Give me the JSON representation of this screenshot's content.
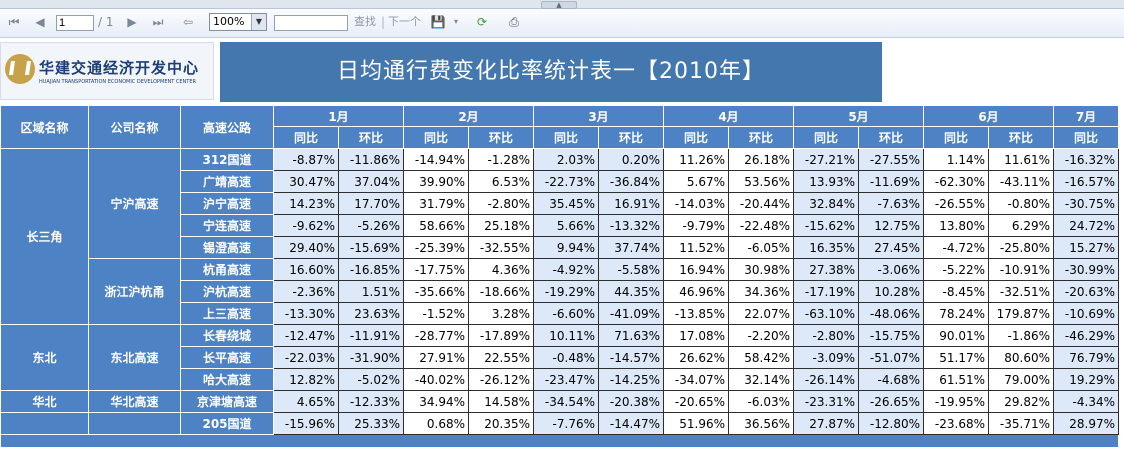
{
  "toolbar": {
    "first_icon": "first-page-icon",
    "prev_icon": "previous-page-icon",
    "page_value": "1",
    "page_total": "/ 1",
    "next_icon": "next-page-icon",
    "last_icon": "last-page-icon",
    "back_icon": "back-icon",
    "zoom_value": "100%",
    "search_value": "",
    "find_label": "查找",
    "separator": "|",
    "next_label": "下一个",
    "export_icon": "export-icon",
    "refresh_icon": "refresh-icon",
    "print_icon": "print-icon"
  },
  "header": {
    "logo_cn": "华建交通经济开发中心",
    "logo_en": "HUAJIAN TRANSPORTATION ECONOMIC DEVELOPMENT CENTER",
    "title": "日均通行费变化比率统计表一【2010年】"
  },
  "table": {
    "col_region": "区域名称",
    "col_company": "公司名称",
    "col_highway": "高速公路",
    "months": [
      "1月",
      "2月",
      "3月",
      "4月",
      "5月",
      "6月",
      "7月"
    ],
    "sub_yoy": "同比",
    "sub_mom": "环比",
    "regions": [
      {
        "name": "长三角",
        "companies": [
          {
            "name": "宁沪高速",
            "highways": [
              {
                "name": "312国道",
                "values": [
                  "-8.87%",
                  "-11.86%",
                  "-14.94%",
                  "-1.28%",
                  "2.03%",
                  "0.20%",
                  "11.26%",
                  "26.18%",
                  "-27.21%",
                  "-27.55%",
                  "1.14%",
                  "11.61%",
                  "-16.32%"
                ]
              },
              {
                "name": "广靖高速",
                "values": [
                  "30.47%",
                  "37.04%",
                  "39.90%",
                  "6.53%",
                  "-22.73%",
                  "-36.84%",
                  "5.67%",
                  "53.56%",
                  "13.93%",
                  "-11.69%",
                  "-62.30%",
                  "-43.11%",
                  "-16.57%"
                ]
              },
              {
                "name": "沪宁高速",
                "values": [
                  "14.23%",
                  "17.70%",
                  "31.79%",
                  "-2.80%",
                  "35.45%",
                  "16.91%",
                  "-14.03%",
                  "-20.44%",
                  "32.84%",
                  "-7.63%",
                  "-26.55%",
                  "-0.80%",
                  "-30.75%"
                ]
              },
              {
                "name": "宁连高速",
                "values": [
                  "-9.62%",
                  "-5.26%",
                  "58.66%",
                  "25.18%",
                  "5.66%",
                  "-13.32%",
                  "-9.79%",
                  "-22.48%",
                  "-15.62%",
                  "12.75%",
                  "13.80%",
                  "6.29%",
                  "24.72%"
                ]
              },
              {
                "name": "锡澄高速",
                "values": [
                  "29.40%",
                  "-15.69%",
                  "-25.39%",
                  "-32.55%",
                  "9.94%",
                  "37.74%",
                  "11.52%",
                  "-6.05%",
                  "16.35%",
                  "27.45%",
                  "-4.72%",
                  "-25.80%",
                  "15.27%"
                ]
              }
            ]
          },
          {
            "name": "浙江沪杭甬",
            "highways": [
              {
                "name": "杭甬高速",
                "values": [
                  "16.60%",
                  "-16.85%",
                  "-17.75%",
                  "4.36%",
                  "-4.92%",
                  "-5.58%",
                  "16.94%",
                  "30.98%",
                  "27.38%",
                  "-3.06%",
                  "-5.22%",
                  "-10.91%",
                  "-30.99%"
                ]
              },
              {
                "name": "沪杭高速",
                "values": [
                  "-2.36%",
                  "1.51%",
                  "-35.66%",
                  "-18.66%",
                  "-19.29%",
                  "44.35%",
                  "46.96%",
                  "34.36%",
                  "-17.19%",
                  "10.28%",
                  "-8.45%",
                  "-32.51%",
                  "-20.63%"
                ]
              },
              {
                "name": "上三高速",
                "values": [
                  "-13.30%",
                  "23.63%",
                  "-1.52%",
                  "3.28%",
                  "-6.60%",
                  "-41.09%",
                  "-13.85%",
                  "22.07%",
                  "-63.10%",
                  "-48.06%",
                  "78.24%",
                  "179.87%",
                  "-10.69%"
                ]
              }
            ]
          }
        ]
      },
      {
        "name": "东北",
        "companies": [
          {
            "name": "东北高速",
            "highways": [
              {
                "name": "长春绕城",
                "values": [
                  "-12.47%",
                  "-11.91%",
                  "-28.77%",
                  "-17.89%",
                  "10.11%",
                  "71.63%",
                  "17.08%",
                  "-2.20%",
                  "-2.80%",
                  "-15.75%",
                  "90.01%",
                  "-1.86%",
                  "-46.29%"
                ]
              },
              {
                "name": "长平高速",
                "values": [
                  "-22.03%",
                  "-31.90%",
                  "27.91%",
                  "22.55%",
                  "-0.48%",
                  "-14.57%",
                  "26.62%",
                  "58.42%",
                  "-3.09%",
                  "-51.07%",
                  "51.17%",
                  "80.60%",
                  "76.79%"
                ]
              },
              {
                "name": "哈大高速",
                "values": [
                  "12.82%",
                  "-5.02%",
                  "-40.02%",
                  "-26.12%",
                  "-23.47%",
                  "-14.25%",
                  "-34.07%",
                  "32.14%",
                  "-26.14%",
                  "-4.68%",
                  "61.51%",
                  "79.00%",
                  "19.29%"
                ]
              }
            ]
          }
        ]
      },
      {
        "name": "华北",
        "companies": [
          {
            "name": "华北高速",
            "highways": [
              {
                "name": "京津塘高速",
                "values": [
                  "4.65%",
                  "-12.33%",
                  "34.94%",
                  "14.58%",
                  "-34.54%",
                  "-20.38%",
                  "-20.65%",
                  "-6.03%",
                  "-23.31%",
                  "-26.65%",
                  "-19.95%",
                  "29.82%",
                  "-4.34%"
                ]
              }
            ]
          }
        ]
      },
      {
        "name": "",
        "companies": [
          {
            "name": "",
            "highways": [
              {
                "name": "205国道",
                "values": [
                  "-15.96%",
                  "25.33%",
                  "0.68%",
                  "20.35%",
                  "-7.76%",
                  "-14.47%",
                  "51.96%",
                  "36.56%",
                  "27.87%",
                  "-12.80%",
                  "-23.68%",
                  "-35.71%",
                  "28.97%"
                ]
              }
            ]
          }
        ]
      }
    ]
  }
}
